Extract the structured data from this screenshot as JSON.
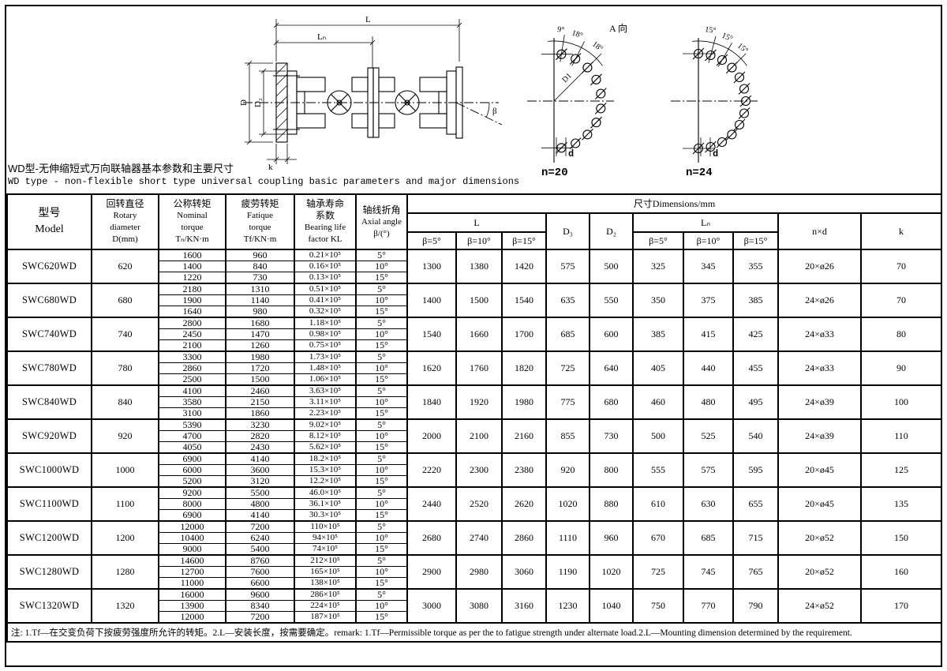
{
  "title": {
    "zh": "WD型-无伸缩短式万向联轴器基本参数和主要尺寸",
    "en": "WD type - non-flexible short type universal coupling basic parameters and major dimensions"
  },
  "drawing": {
    "dim_labels": {
      "L": "L",
      "Ln": "Lₙ",
      "D": "D",
      "D2": "D₂",
      "k": "k",
      "beta": "β"
    },
    "view_a": {
      "label": "A 向",
      "n20": {
        "caption": "n=20",
        "angles": [
          "9°",
          "18°",
          "18°"
        ],
        "radius_label": "D1",
        "hole_label": "d"
      },
      "n24": {
        "caption": "n=24",
        "angles": [
          "15°",
          "15°",
          "15°"
        ],
        "hole_label": "d"
      }
    }
  },
  "table": {
    "headers": {
      "model": [
        "型号",
        "Model"
      ],
      "rotary": [
        "回转直径",
        "Rotary",
        "diameter",
        "D(mm)"
      ],
      "nominal": [
        "公称转矩",
        "Nominal",
        "torque",
        "Tₙ/KN·m"
      ],
      "fatigue": [
        "疲劳转矩",
        "Fatique",
        "torque",
        "Tf/KN·m"
      ],
      "bearing": [
        "轴承寿命",
        "系数",
        "Bearing life",
        "factor KL"
      ],
      "axial": [
        "轴线折角",
        "Axial angle",
        "β/(°)"
      ],
      "dims": "尺寸Dimensions/mm",
      "L": "L",
      "Ln": "Lₙ",
      "D3": "D₃",
      "D2": "D₂",
      "beta": [
        "β=5°",
        "β=10°",
        "β=15°"
      ],
      "nxd": "n×d",
      "k": "k"
    },
    "rows": [
      {
        "model": "SWC620WD",
        "D": "620",
        "sub": [
          [
            "1600",
            "960",
            "0.21×10⁵",
            "5°"
          ],
          [
            "1400",
            "840",
            "0.16×10⁵",
            "10°"
          ],
          [
            "1220",
            "730",
            "0.13×10⁵",
            "15°"
          ]
        ],
        "L": [
          "1300",
          "1380",
          "1420"
        ],
        "D3": "575",
        "D2": "500",
        "Ln": [
          "325",
          "345",
          "355"
        ],
        "nxd": "20×ø26",
        "k": "70"
      },
      {
        "model": "SWC680WD",
        "D": "680",
        "sub": [
          [
            "2180",
            "1310",
            "0.51×10⁵",
            "5°"
          ],
          [
            "1900",
            "1140",
            "0.41×10⁵",
            "10°"
          ],
          [
            "1640",
            "980",
            "0.32×10⁵",
            "15°"
          ]
        ],
        "L": [
          "1400",
          "1500",
          "1540"
        ],
        "D3": "635",
        "D2": "550",
        "Ln": [
          "350",
          "375",
          "385"
        ],
        "nxd": "24×ø26",
        "k": "70"
      },
      {
        "model": "SWC740WD",
        "D": "740",
        "sub": [
          [
            "2800",
            "1680",
            "1.18×10⁵",
            "5°"
          ],
          [
            "2450",
            "1470",
            "0.98×10⁵",
            "10°"
          ],
          [
            "2100",
            "1260",
            "0.75×10⁵",
            "15°"
          ]
        ],
        "L": [
          "1540",
          "1660",
          "1700"
        ],
        "D3": "685",
        "D2": "600",
        "Ln": [
          "385",
          "415",
          "425"
        ],
        "nxd": "24×ø33",
        "k": "80"
      },
      {
        "model": "SWC780WD",
        "D": "780",
        "sub": [
          [
            "3300",
            "1980",
            "1.73×10⁵",
            "5°"
          ],
          [
            "2860",
            "1720",
            "1.48×10⁵",
            "10°"
          ],
          [
            "2500",
            "1500",
            "1.06×10⁵",
            "15°"
          ]
        ],
        "L": [
          "1620",
          "1760",
          "1820"
        ],
        "D3": "725",
        "D2": "640",
        "Ln": [
          "405",
          "440",
          "455"
        ],
        "nxd": "24×ø33",
        "k": "90"
      },
      {
        "model": "SWC840WD",
        "D": "840",
        "sub": [
          [
            "4100",
            "2460",
            "3.63×10⁵",
            "5°"
          ],
          [
            "3580",
            "2150",
            "3.11×10⁵",
            "10°"
          ],
          [
            "3100",
            "1860",
            "2.23×10⁵",
            "15°"
          ]
        ],
        "L": [
          "1840",
          "1920",
          "1980"
        ],
        "D3": "775",
        "D2": "680",
        "Ln": [
          "460",
          "480",
          "495"
        ],
        "nxd": "24×ø39",
        "k": "100"
      },
      {
        "model": "SWC920WD",
        "D": "920",
        "sub": [
          [
            "5390",
            "3230",
            "9.02×10⁵",
            "5°"
          ],
          [
            "4700",
            "2820",
            "8.12×10⁵",
            "10°"
          ],
          [
            "4050",
            "2430",
            "5.62×10⁵",
            "15°"
          ]
        ],
        "L": [
          "2000",
          "2100",
          "2160"
        ],
        "D3": "855",
        "D2": "730",
        "Ln": [
          "500",
          "525",
          "540"
        ],
        "nxd": "24×ø39",
        "k": "110"
      },
      {
        "model": "SWC1000WD",
        "D": "1000",
        "sub": [
          [
            "6900",
            "4140",
            "18.2×10⁵",
            "5°"
          ],
          [
            "6000",
            "3600",
            "15.3×10⁵",
            "10°"
          ],
          [
            "5200",
            "3120",
            "12.2×10⁵",
            "15°"
          ]
        ],
        "L": [
          "2220",
          "2300",
          "2380"
        ],
        "D3": "920",
        "D2": "800",
        "Ln": [
          "555",
          "575",
          "595"
        ],
        "nxd": "20×ø45",
        "k": "125"
      },
      {
        "model": "SWC1100WD",
        "D": "1100",
        "sub": [
          [
            "9200",
            "5500",
            "46.0×10⁵",
            "5°"
          ],
          [
            "8000",
            "4800",
            "36.1×10⁵",
            "10°"
          ],
          [
            "6900",
            "4140",
            "30.3×10⁵",
            "15°"
          ]
        ],
        "L": [
          "2440",
          "2520",
          "2620"
        ],
        "D3": "1020",
        "D2": "880",
        "Ln": [
          "610",
          "630",
          "655"
        ],
        "nxd": "20×ø45",
        "k": "135"
      },
      {
        "model": "SWC1200WD",
        "D": "1200",
        "sub": [
          [
            "12000",
            "7200",
            "110×10⁵",
            "5°"
          ],
          [
            "10400",
            "6240",
            "94×10⁵",
            "10°"
          ],
          [
            "9000",
            "5400",
            "74×10⁵",
            "15°"
          ]
        ],
        "L": [
          "2680",
          "2740",
          "2860"
        ],
        "D3": "1110",
        "D2": "960",
        "Ln": [
          "670",
          "685",
          "715"
        ],
        "nxd": "20×ø52",
        "k": "150"
      },
      {
        "model": "SWC1280WD",
        "D": "1280",
        "sub": [
          [
            "14600",
            "8760",
            "212×10⁵",
            "5°"
          ],
          [
            "12700",
            "7600",
            "165×10⁵",
            "10°"
          ],
          [
            "11000",
            "6600",
            "138×10⁵",
            "15°"
          ]
        ],
        "L": [
          "2900",
          "2980",
          "3060"
        ],
        "D3": "1190",
        "D2": "1020",
        "Ln": [
          "725",
          "745",
          "765"
        ],
        "nxd": "20×ø52",
        "k": "160"
      },
      {
        "model": "SWC1320WD",
        "D": "1320",
        "sub": [
          [
            "16000",
            "9600",
            "286×10⁵",
            "5°"
          ],
          [
            "13900",
            "8340",
            "224×10⁵",
            "10°"
          ],
          [
            "12000",
            "7200",
            "187×10⁵",
            "15°"
          ]
        ],
        "L": [
          "3000",
          "3080",
          "3160"
        ],
        "D3": "1230",
        "D2": "1040",
        "Ln": [
          "750",
          "770",
          "790"
        ],
        "nxd": "24×ø52",
        "k": "170"
      }
    ]
  },
  "footer": "注: 1.Tf—在交变负荷下按疲劳强度所允许的转矩。2.L—安装长度，按需要确定。remark: 1.Tf—Permissible torque as per the to fatigue strength under alternate load.2.L—Mounting dimension determined by the requirement."
}
